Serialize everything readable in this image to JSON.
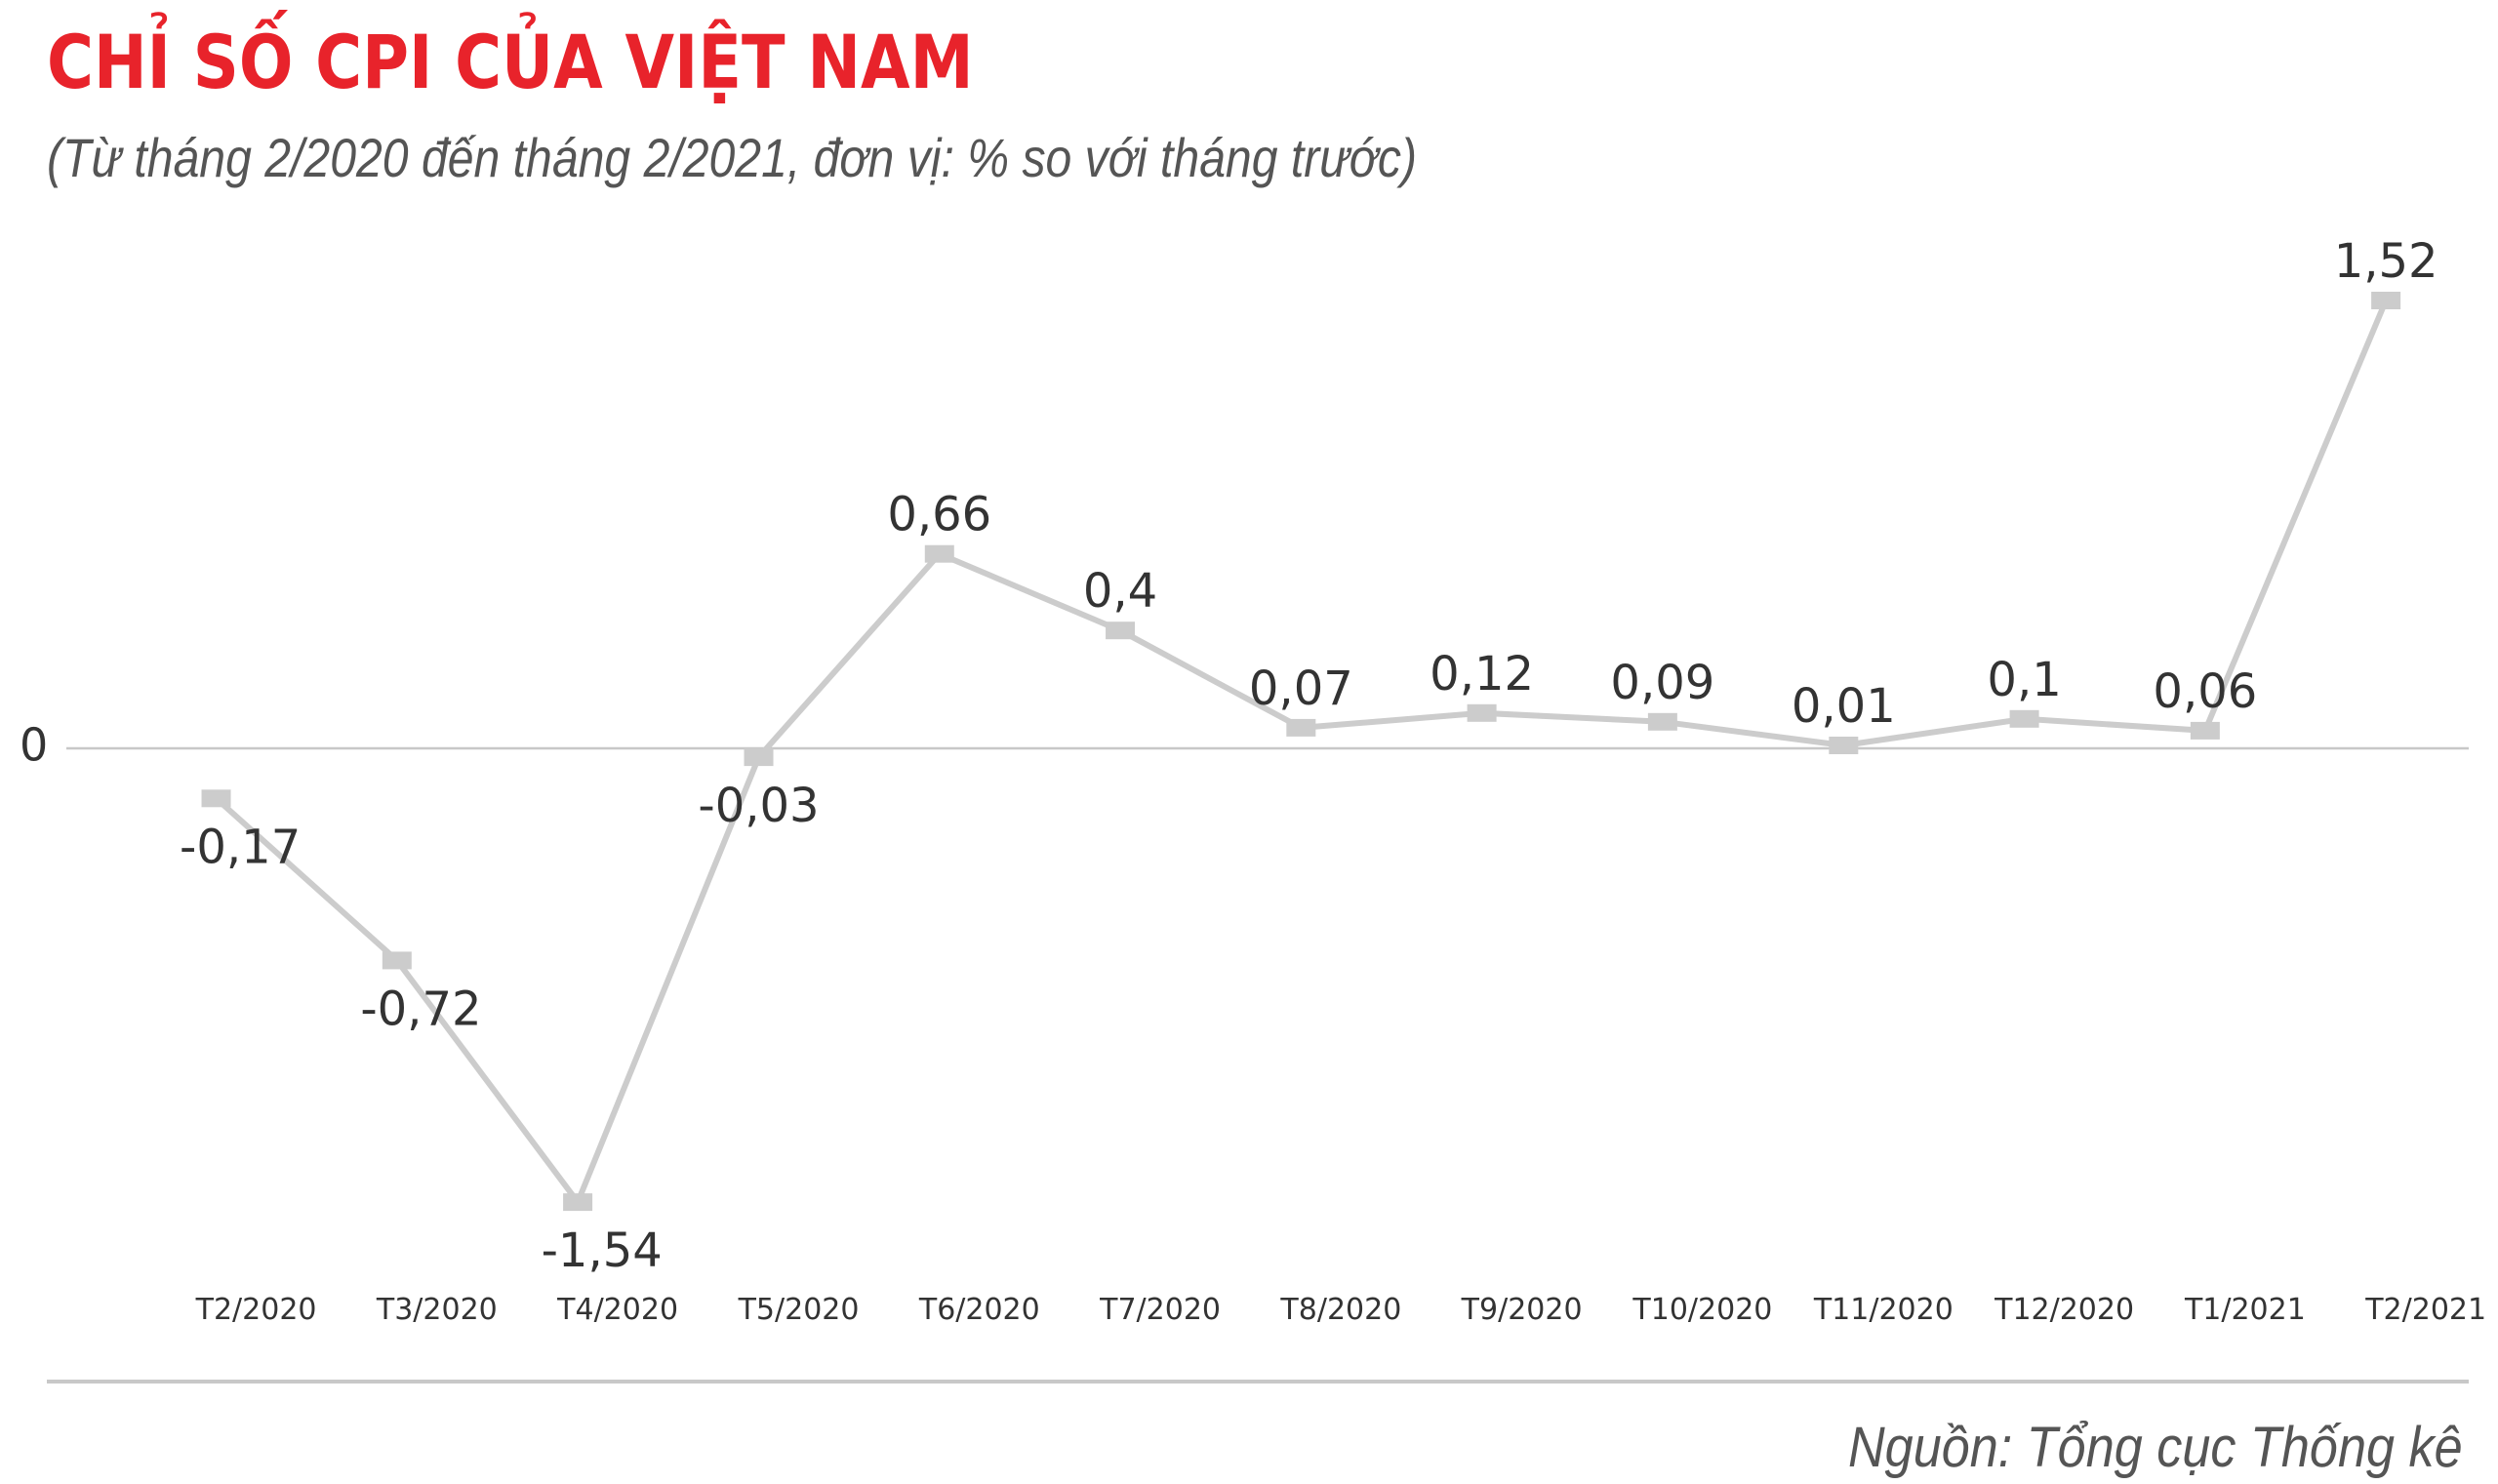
{
  "header": {
    "title": "CHỈ SỐ CPI CỦA VIỆT NAM",
    "subtitle": "(Từ tháng 2/2020 đến tháng 2/2021, đơn vị: % so với tháng trước)"
  },
  "footer": {
    "source": "Nguồn: Tổng cục Thống kê"
  },
  "colors": {
    "title": "#e8232b",
    "line": "#cccccc",
    "marker": "#cccccc",
    "zero_line": "#c8c8c8",
    "labels": "#333333"
  },
  "chart_data": {
    "type": "line",
    "title": "CHỈ SỐ CPI CỦA VIỆT NAM",
    "subtitle": "(Từ tháng 2/2020 đến tháng 2/2021, đơn vị: % so với tháng trước)",
    "categories": [
      "T2/2020",
      "T3/2020",
      "T4/2020",
      "T5/2020",
      "T6/2020",
      "T7/2020",
      "T8/2020",
      "T9/2020",
      "T10/2020",
      "T11/2020",
      "T12/2020",
      "T1/2021",
      "T2/2021"
    ],
    "series": [
      {
        "values": [
          -0.17,
          -0.72,
          -1.54,
          -0.03,
          0.66,
          0.4,
          0.07,
          0.12,
          0.09,
          0.01,
          0.1,
          0.06,
          1.52
        ],
        "labels": [
          "-0,17",
          "-0,72",
          "-1,54",
          "-0,03",
          "0,66",
          "0,4",
          "0,07",
          "0,12",
          "0,09",
          "0,01",
          "0,1",
          "0,06",
          "1,52"
        ]
      }
    ],
    "baseline_label": "0",
    "xlabel": "",
    "ylabel": "",
    "grid": false,
    "legend": "none"
  }
}
